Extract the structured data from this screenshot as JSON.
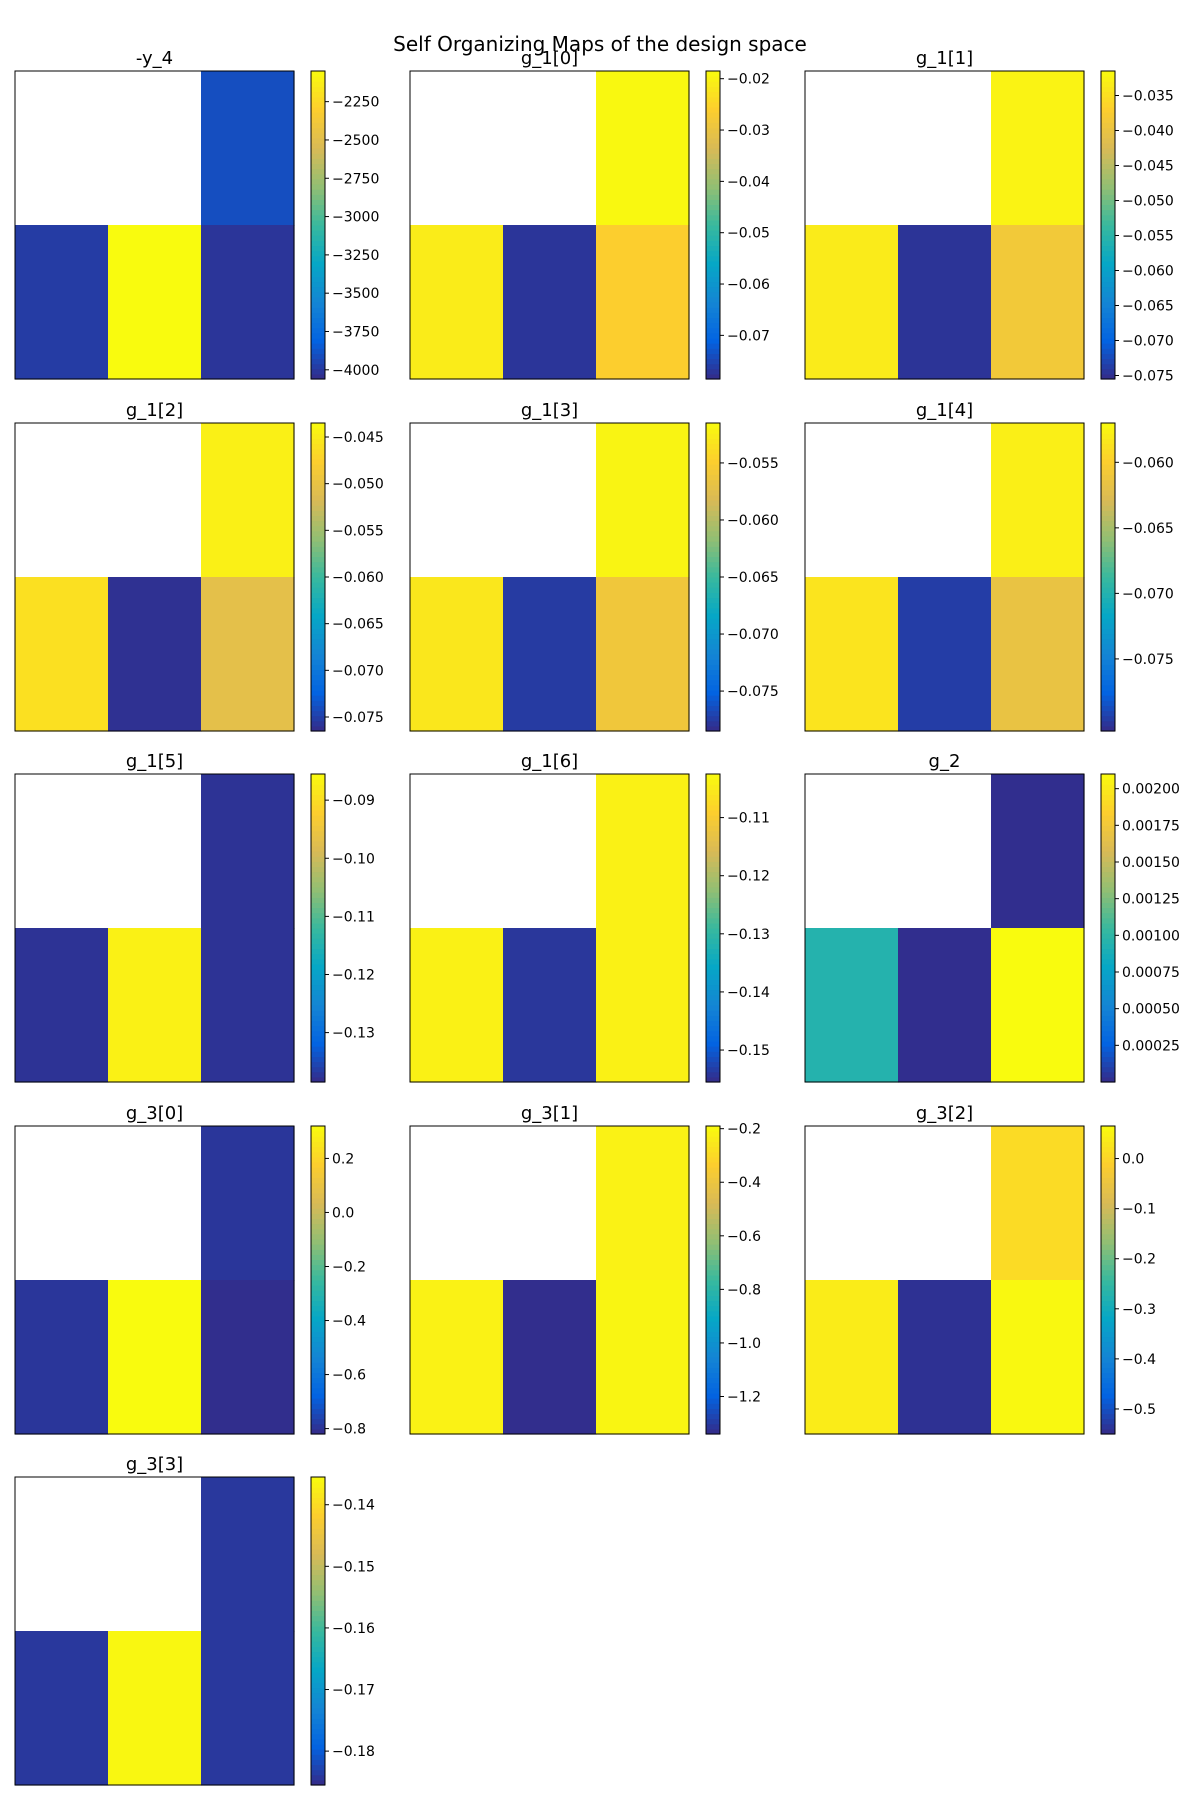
{
  "figure_title": "Self Organizing Maps of the design space",
  "colors": {
    "colormap": [
      "#352a87",
      "#0363e1",
      "#1485d4",
      "#06a7c6",
      "#38b99e",
      "#92bf73",
      "#d9ba56",
      "#fcce2e",
      "#f9fb0e"
    ],
    "empty_cell": "#ffffff",
    "frame": "#000000"
  },
  "chart_data": [
    {
      "type": "heatmap",
      "title": "-y_4",
      "grid": [
        [
          null,
          null,
          -3900
        ],
        [
          -3980,
          -2050,
          -4010
        ]
      ],
      "vmin": -4060,
      "vmax": -2050,
      "ticks": [
        -2250,
        -2500,
        -2750,
        -3000,
        -3250,
        -3500,
        -3750,
        -4000
      ],
      "tick_labels": [
        "−2250",
        "−2500",
        "−2750",
        "−3000",
        "−3250",
        "−3500",
        "−3750",
        "−4000"
      ]
    },
    {
      "type": "heatmap",
      "title": "g_1[0]",
      "grid": [
        [
          null,
          null,
          -0.019
        ],
        [
          -0.021,
          -0.077,
          -0.026
        ]
      ],
      "vmin": -0.0785,
      "vmax": -0.0185,
      "ticks": [
        -0.02,
        -0.03,
        -0.04,
        -0.05,
        -0.06,
        -0.07
      ],
      "tick_labels": [
        "−0.02",
        "−0.03",
        "−0.04",
        "−0.05",
        "−0.06",
        "−0.07"
      ]
    },
    {
      "type": "heatmap",
      "title": "g_1[1]",
      "grid": [
        [
          null,
          null,
          -0.0325
        ],
        [
          -0.0335,
          -0.0745,
          -0.0385
        ]
      ],
      "vmin": -0.0755,
      "vmax": -0.0315,
      "ticks": [
        -0.035,
        -0.04,
        -0.045,
        -0.05,
        -0.055,
        -0.06,
        -0.065,
        -0.07,
        -0.075
      ],
      "tick_labels": [
        "−0.035",
        "−0.040",
        "−0.045",
        "−0.050",
        "−0.055",
        "−0.060",
        "−0.065",
        "−0.070",
        "−0.075"
      ]
    },
    {
      "type": "heatmap",
      "title": "g_1[2]",
      "grid": [
        [
          null,
          null,
          -0.0445
        ],
        [
          -0.046,
          -0.076,
          -0.0505
        ]
      ],
      "vmin": -0.0765,
      "vmax": -0.0435,
      "ticks": [
        -0.045,
        -0.05,
        -0.055,
        -0.06,
        -0.065,
        -0.07,
        -0.075
      ],
      "tick_labels": [
        "−0.045",
        "−0.050",
        "−0.055",
        "−0.060",
        "−0.065",
        "−0.070",
        "−0.075"
      ]
    },
    {
      "type": "heatmap",
      "title": "g_1[3]",
      "grid": [
        [
          null,
          null,
          -0.052
        ],
        [
          -0.053,
          -0.0775,
          -0.056
        ]
      ],
      "vmin": -0.0785,
      "vmax": -0.0515,
      "ticks": [
        -0.055,
        -0.06,
        -0.065,
        -0.07,
        -0.075
      ],
      "tick_labels": [
        "−0.055",
        "−0.060",
        "−0.065",
        "−0.070",
        "−0.075"
      ]
    },
    {
      "type": "heatmap",
      "title": "g_1[4]",
      "grid": [
        [
          null,
          null,
          -0.0578
        ],
        [
          -0.0585,
          -0.0795,
          -0.0615
        ]
      ],
      "vmin": -0.0805,
      "vmax": -0.057,
      "ticks": [
        -0.06,
        -0.065,
        -0.07,
        -0.075
      ],
      "tick_labels": [
        "−0.060",
        "−0.065",
        "−0.070",
        "−0.075"
      ]
    },
    {
      "type": "heatmap",
      "title": "g_1[5]",
      "grid": [
        [
          null,
          null,
          -0.1375
        ],
        [
          -0.1375,
          -0.087,
          -0.1375
        ]
      ],
      "vmin": -0.1385,
      "vmax": -0.0855,
      "ticks": [
        -0.09,
        -0.1,
        -0.11,
        -0.12,
        -0.13
      ],
      "tick_labels": [
        "−0.09",
        "−0.10",
        "−0.11",
        "−0.12",
        "−0.13"
      ]
    },
    {
      "type": "heatmap",
      "title": "g_1[6]",
      "grid": [
        [
          null,
          null,
          -0.104
        ],
        [
          -0.104,
          -0.154,
          -0.104
        ]
      ],
      "vmin": -0.1555,
      "vmax": -0.1025,
      "ticks": [
        -0.11,
        -0.12,
        -0.13,
        -0.14,
        -0.15
      ],
      "tick_labels": [
        "−0.11",
        "−0.12",
        "−0.13",
        "−0.14",
        "−0.15"
      ]
    },
    {
      "type": "heatmap",
      "title": "g_2",
      "grid": [
        [
          null,
          null,
          2e-05
        ],
        [
          0.00095,
          2e-05,
          0.0021
        ]
      ],
      "vmin": 0.0,
      "vmax": 0.0021,
      "ticks": [
        0.002,
        0.00175,
        0.0015,
        0.00125,
        0.001,
        0.00075,
        0.0005,
        0.00025
      ],
      "tick_labels": [
        "0.00200",
        "0.00175",
        "0.00150",
        "0.00125",
        "0.00100",
        "0.00075",
        "0.00050",
        "0.00025"
      ]
    },
    {
      "type": "heatmap",
      "title": "g_3[0]",
      "grid": [
        [
          null,
          null,
          -0.79
        ],
        [
          -0.79,
          0.32,
          -0.81
        ]
      ],
      "vmin": -0.82,
      "vmax": 0.32,
      "ticks": [
        0.2,
        0.0,
        -0.2,
        -0.4,
        -0.6,
        -0.8
      ],
      "tick_labels": [
        "0.2",
        "0.0",
        "−0.2",
        "−0.4",
        "−0.6",
        "−0.8"
      ]
    },
    {
      "type": "heatmap",
      "title": "g_3[1]",
      "grid": [
        [
          null,
          null,
          -0.22
        ],
        [
          -0.22,
          -1.33,
          -0.21
        ]
      ],
      "vmin": -1.34,
      "vmax": -0.19,
      "ticks": [
        -0.2,
        -0.4,
        -0.6,
        -0.8,
        -1.0,
        -1.2
      ],
      "tick_labels": [
        "−0.2",
        "−0.4",
        "−0.6",
        "−0.8",
        "−1.0",
        "−1.2"
      ]
    },
    {
      "type": "heatmap",
      "title": "g_3[2]",
      "grid": [
        [
          null,
          null,
          0.01
        ],
        [
          0.04,
          -0.54,
          0.06
        ]
      ],
      "vmin": -0.55,
      "vmax": 0.065,
      "ticks": [
        0.0,
        -0.1,
        -0.2,
        -0.3,
        -0.4,
        -0.5
      ],
      "tick_labels": [
        "0.0",
        "−0.1",
        "−0.2",
        "−0.3",
        "−0.4",
        "−0.5"
      ]
    },
    {
      "type": "heatmap",
      "title": "g_3[3]",
      "grid": [
        [
          null,
          null,
          -0.184
        ],
        [
          -0.184,
          -0.136,
          -0.184
        ]
      ],
      "vmin": -0.1855,
      "vmax": -0.1355,
      "ticks": [
        -0.14,
        -0.15,
        -0.16,
        -0.17,
        -0.18
      ],
      "tick_labels": [
        "−0.14",
        "−0.15",
        "−0.16",
        "−0.17",
        "−0.18"
      ]
    }
  ]
}
